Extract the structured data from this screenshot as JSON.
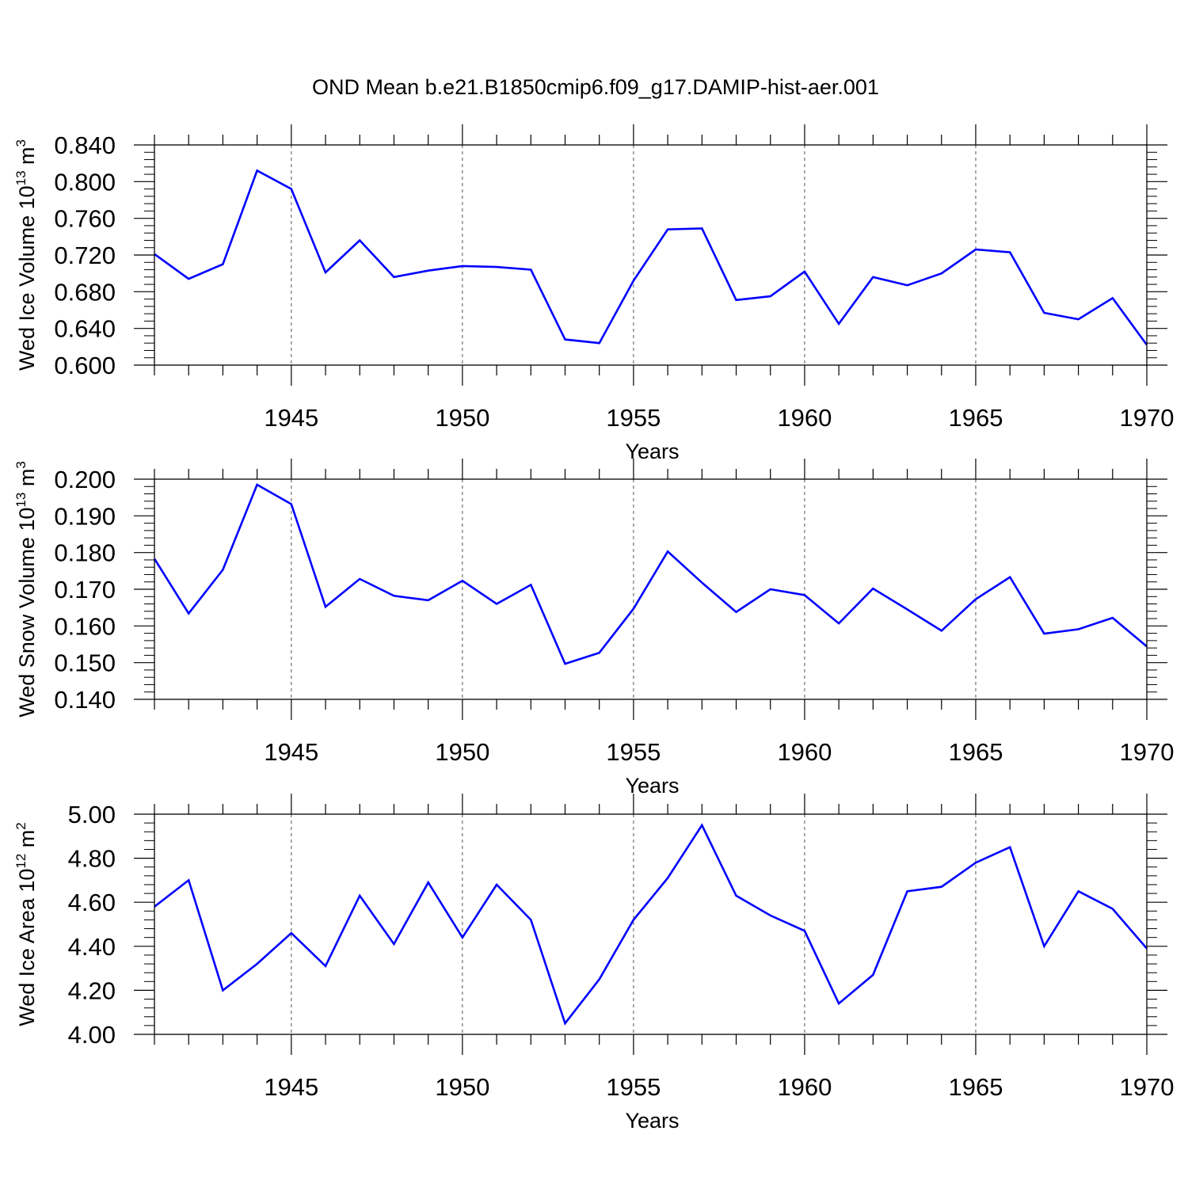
{
  "title": "OND Mean b.e21.B1850cmip6.f09_g17.DAMIP-hist-aer.001",
  "colors": {
    "line": "#0000ff",
    "axis": "#000000",
    "grid": "#555555"
  },
  "chart_data": [
    {
      "type": "line",
      "ylabel": {
        "text": "Wed Ice Volume 10",
        "exponent": "13",
        "unit": "m",
        "unit_exponent": "3"
      },
      "xlabel": "Years",
      "xlim": [
        1941,
        1970
      ],
      "ylim": [
        0.6,
        0.84
      ],
      "xticks": [
        1945,
        1950,
        1955,
        1960,
        1965,
        1970
      ],
      "yticks": [
        "0.600",
        "0.640",
        "0.680",
        "0.720",
        "0.760",
        "0.800",
        "0.840"
      ],
      "grid": "vertical dashed at major x ticks",
      "x": [
        1941,
        1942,
        1943,
        1944,
        1945,
        1946,
        1947,
        1948,
        1949,
        1950,
        1951,
        1952,
        1953,
        1954,
        1955,
        1956,
        1957,
        1958,
        1959,
        1960,
        1961,
        1962,
        1963,
        1964,
        1965,
        1966,
        1967,
        1968,
        1969,
        1970
      ],
      "series": [
        {
          "values": [
            0.721,
            0.694,
            0.71,
            0.812,
            0.792,
            0.701,
            0.736,
            0.696,
            0.703,
            0.708,
            0.707,
            0.704,
            0.628,
            0.624,
            0.692,
            0.748,
            0.749,
            0.671,
            0.675,
            0.702,
            0.645,
            0.696,
            0.687,
            0.7,
            0.726,
            0.723,
            0.657,
            0.65,
            0.673,
            0.622
          ]
        }
      ]
    },
    {
      "type": "line",
      "ylabel": {
        "text": "Wed Snow Volume 10",
        "exponent": "13",
        "unit": "m",
        "unit_exponent": "3"
      },
      "xlabel": "Years",
      "xlim": [
        1941,
        1970
      ],
      "ylim": [
        0.14,
        0.2
      ],
      "xticks": [
        1945,
        1950,
        1955,
        1960,
        1965,
        1970
      ],
      "yticks": [
        "0.140",
        "0.150",
        "0.160",
        "0.170",
        "0.180",
        "0.190",
        "0.200"
      ],
      "grid": "vertical dashed at major x ticks",
      "x": [
        1941,
        1942,
        1943,
        1944,
        1945,
        1946,
        1947,
        1948,
        1949,
        1950,
        1951,
        1952,
        1953,
        1954,
        1955,
        1956,
        1957,
        1958,
        1959,
        1960,
        1961,
        1962,
        1963,
        1964,
        1965,
        1966,
        1967,
        1968,
        1969,
        1970
      ],
      "series": [
        {
          "values": [
            0.1783,
            0.1634,
            0.1753,
            0.1985,
            0.1932,
            0.1652,
            0.1728,
            0.1682,
            0.167,
            0.1723,
            0.166,
            0.1712,
            0.1497,
            0.1527,
            0.1647,
            0.1803,
            0.1718,
            0.1638,
            0.17,
            0.1684,
            0.1607,
            0.1702,
            0.1645,
            0.1587,
            0.1673,
            0.1733,
            0.1579,
            0.1591,
            0.1622,
            0.1544
          ]
        }
      ]
    },
    {
      "type": "line",
      "ylabel": {
        "text": "Wed Ice Area 10",
        "exponent": "12",
        "unit": "m",
        "unit_exponent": "2"
      },
      "xlabel": "Years",
      "xlim": [
        1941,
        1970
      ],
      "ylim": [
        4.0,
        5.0
      ],
      "xticks": [
        1945,
        1950,
        1955,
        1960,
        1965,
        1970
      ],
      "yticks": [
        "4.00",
        "4.20",
        "4.40",
        "4.60",
        "4.80",
        "5.00"
      ],
      "grid": "vertical dashed at major x ticks",
      "x": [
        1941,
        1942,
        1943,
        1944,
        1945,
        1946,
        1947,
        1948,
        1949,
        1950,
        1951,
        1952,
        1953,
        1954,
        1955,
        1956,
        1957,
        1958,
        1959,
        1960,
        1961,
        1962,
        1963,
        1964,
        1965,
        1966,
        1967,
        1968,
        1969,
        1970
      ],
      "series": [
        {
          "values": [
            4.58,
            4.7,
            4.2,
            4.32,
            4.46,
            4.31,
            4.63,
            4.41,
            4.69,
            4.44,
            4.68,
            4.52,
            4.05,
            4.25,
            4.52,
            4.71,
            4.95,
            4.63,
            4.54,
            4.47,
            4.14,
            4.27,
            4.65,
            4.67,
            4.78,
            4.85,
            4.4,
            4.65,
            4.57,
            4.39
          ]
        }
      ]
    }
  ]
}
